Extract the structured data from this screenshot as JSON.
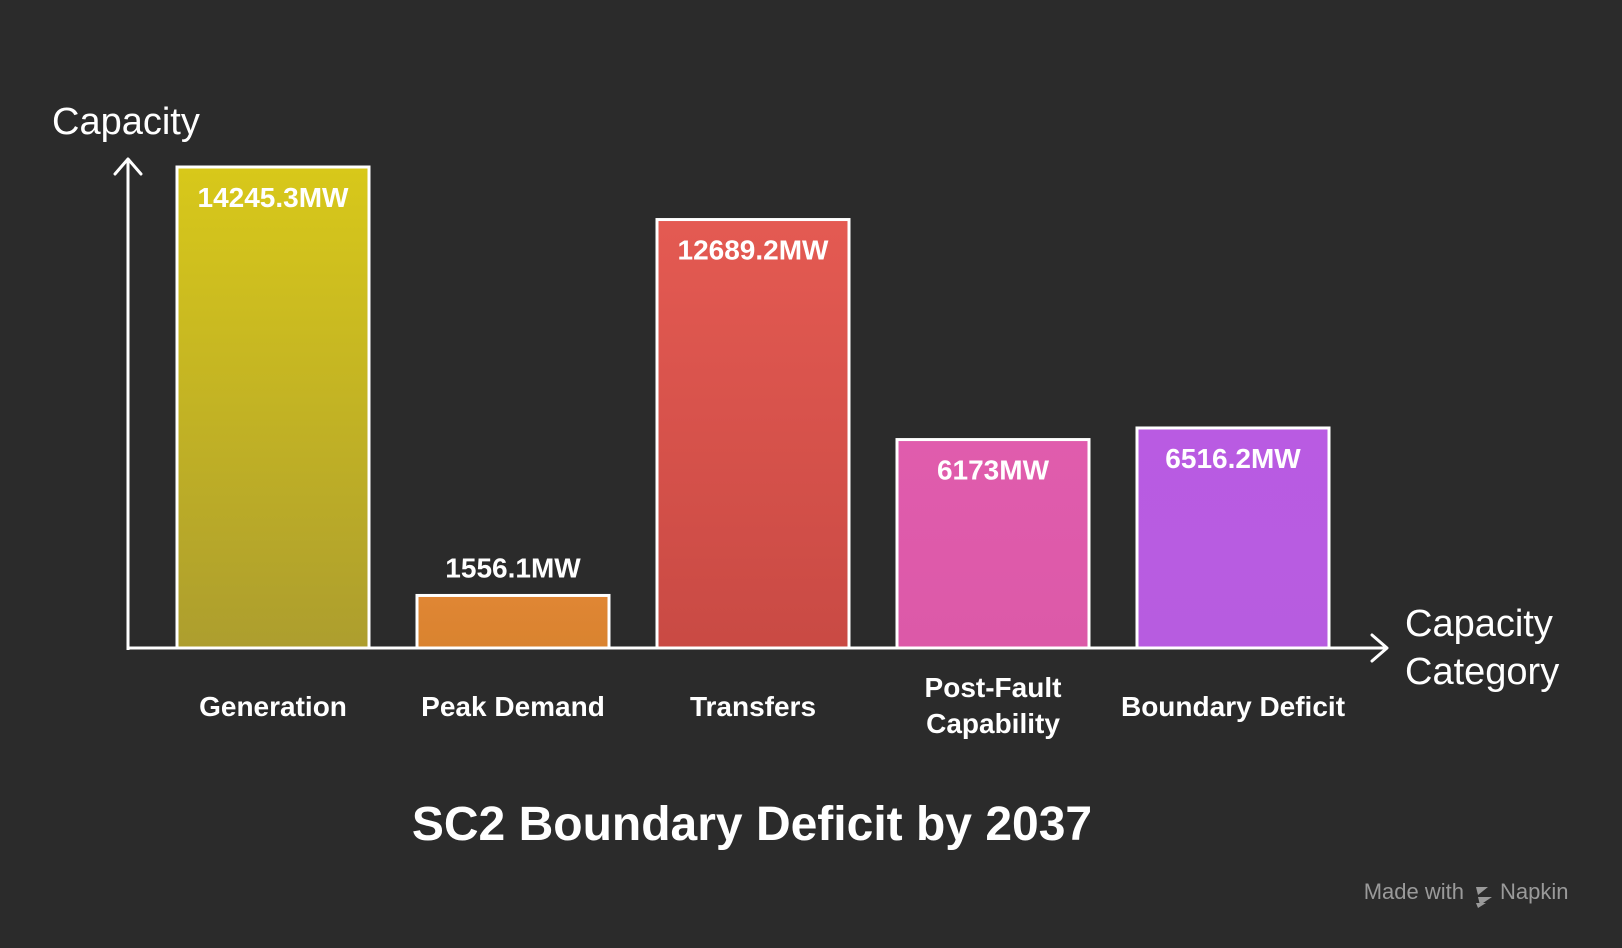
{
  "chart_data": {
    "type": "bar",
    "title": "SC2 Boundary Deficit by 2037",
    "ylabel": "Capacity",
    "xlabel_lines": [
      "Capacity",
      "Category"
    ],
    "unit": "MW",
    "ylim": [
      0,
      14245.3
    ],
    "categories": [
      [
        "Generation"
      ],
      [
        "Peak Demand"
      ],
      [
        "Transfers"
      ],
      [
        "Post-Fault",
        "Capability"
      ],
      [
        "Boundary Deficit"
      ]
    ],
    "values": [
      14245.3,
      1556.1,
      12689.2,
      6173,
      6516.2
    ],
    "value_labels": [
      "14245.3MW",
      "1556.1MW",
      "12689.2MW",
      "6173MW",
      "6516.2MW"
    ],
    "colors": [
      [
        "#d8c81a",
        "#ad9e2e"
      ],
      [
        "#e08634",
        "#d9832f"
      ],
      [
        "#e45a52",
        "#c94a44"
      ],
      [
        "#e05cad",
        "#dc59a8"
      ],
      [
        "#b95be2",
        "#b75ce0"
      ]
    ]
  },
  "footer": {
    "made_with": "Made with",
    "brand": "Napkin",
    "brand_icon": "napkin-logo-icon"
  }
}
